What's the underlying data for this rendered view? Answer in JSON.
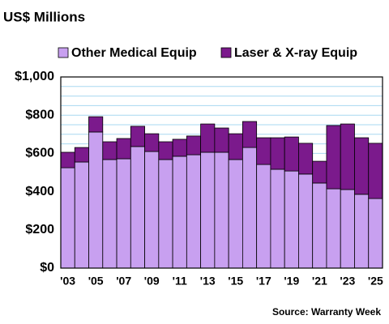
{
  "chart_data": {
    "type": "stacked_bar",
    "title": "US$ Millions",
    "source": "Source: Warranty Week",
    "categories": [
      "'03",
      null,
      "'05",
      null,
      "'07",
      null,
      "'09",
      null,
      "'11",
      null,
      "'13",
      null,
      "'15",
      null,
      "'17",
      null,
      "'19",
      null,
      "'21",
      null,
      "'23",
      null,
      "'25"
    ],
    "series": [
      {
        "name": "Other Medical Equip",
        "color": "#c8a0f0",
        "values": [
          525,
          555,
          712,
          568,
          572,
          636,
          610,
          568,
          585,
          593,
          606,
          606,
          568,
          631,
          542,
          517,
          508,
          492,
          445,
          415,
          411,
          386,
          364
        ]
      },
      {
        "name": "Laser & X-ray Equip",
        "color": "#7b1a8c",
        "values": [
          81,
          76,
          80,
          93,
          106,
          106,
          93,
          93,
          89,
          98,
          148,
          127,
          135,
          136,
          140,
          165,
          178,
          161,
          114,
          331,
          343,
          296,
          289
        ]
      }
    ],
    "ylim": [
      0,
      1000
    ],
    "yticks": [
      {
        "value": 0,
        "label": "$0"
      },
      {
        "value": 200,
        "label": "$200"
      },
      {
        "value": 400,
        "label": "$400"
      },
      {
        "value": 600,
        "label": "$600"
      },
      {
        "value": 800,
        "label": "$800"
      },
      {
        "value": 1000,
        "label": "$1,000"
      }
    ],
    "minor_yticks": [
      50,
      100,
      150,
      250,
      300,
      350,
      450,
      500,
      550,
      650,
      700,
      750,
      850,
      900,
      950
    ],
    "grid": true,
    "grid_color": "#a8d8f0",
    "legend": "top"
  }
}
